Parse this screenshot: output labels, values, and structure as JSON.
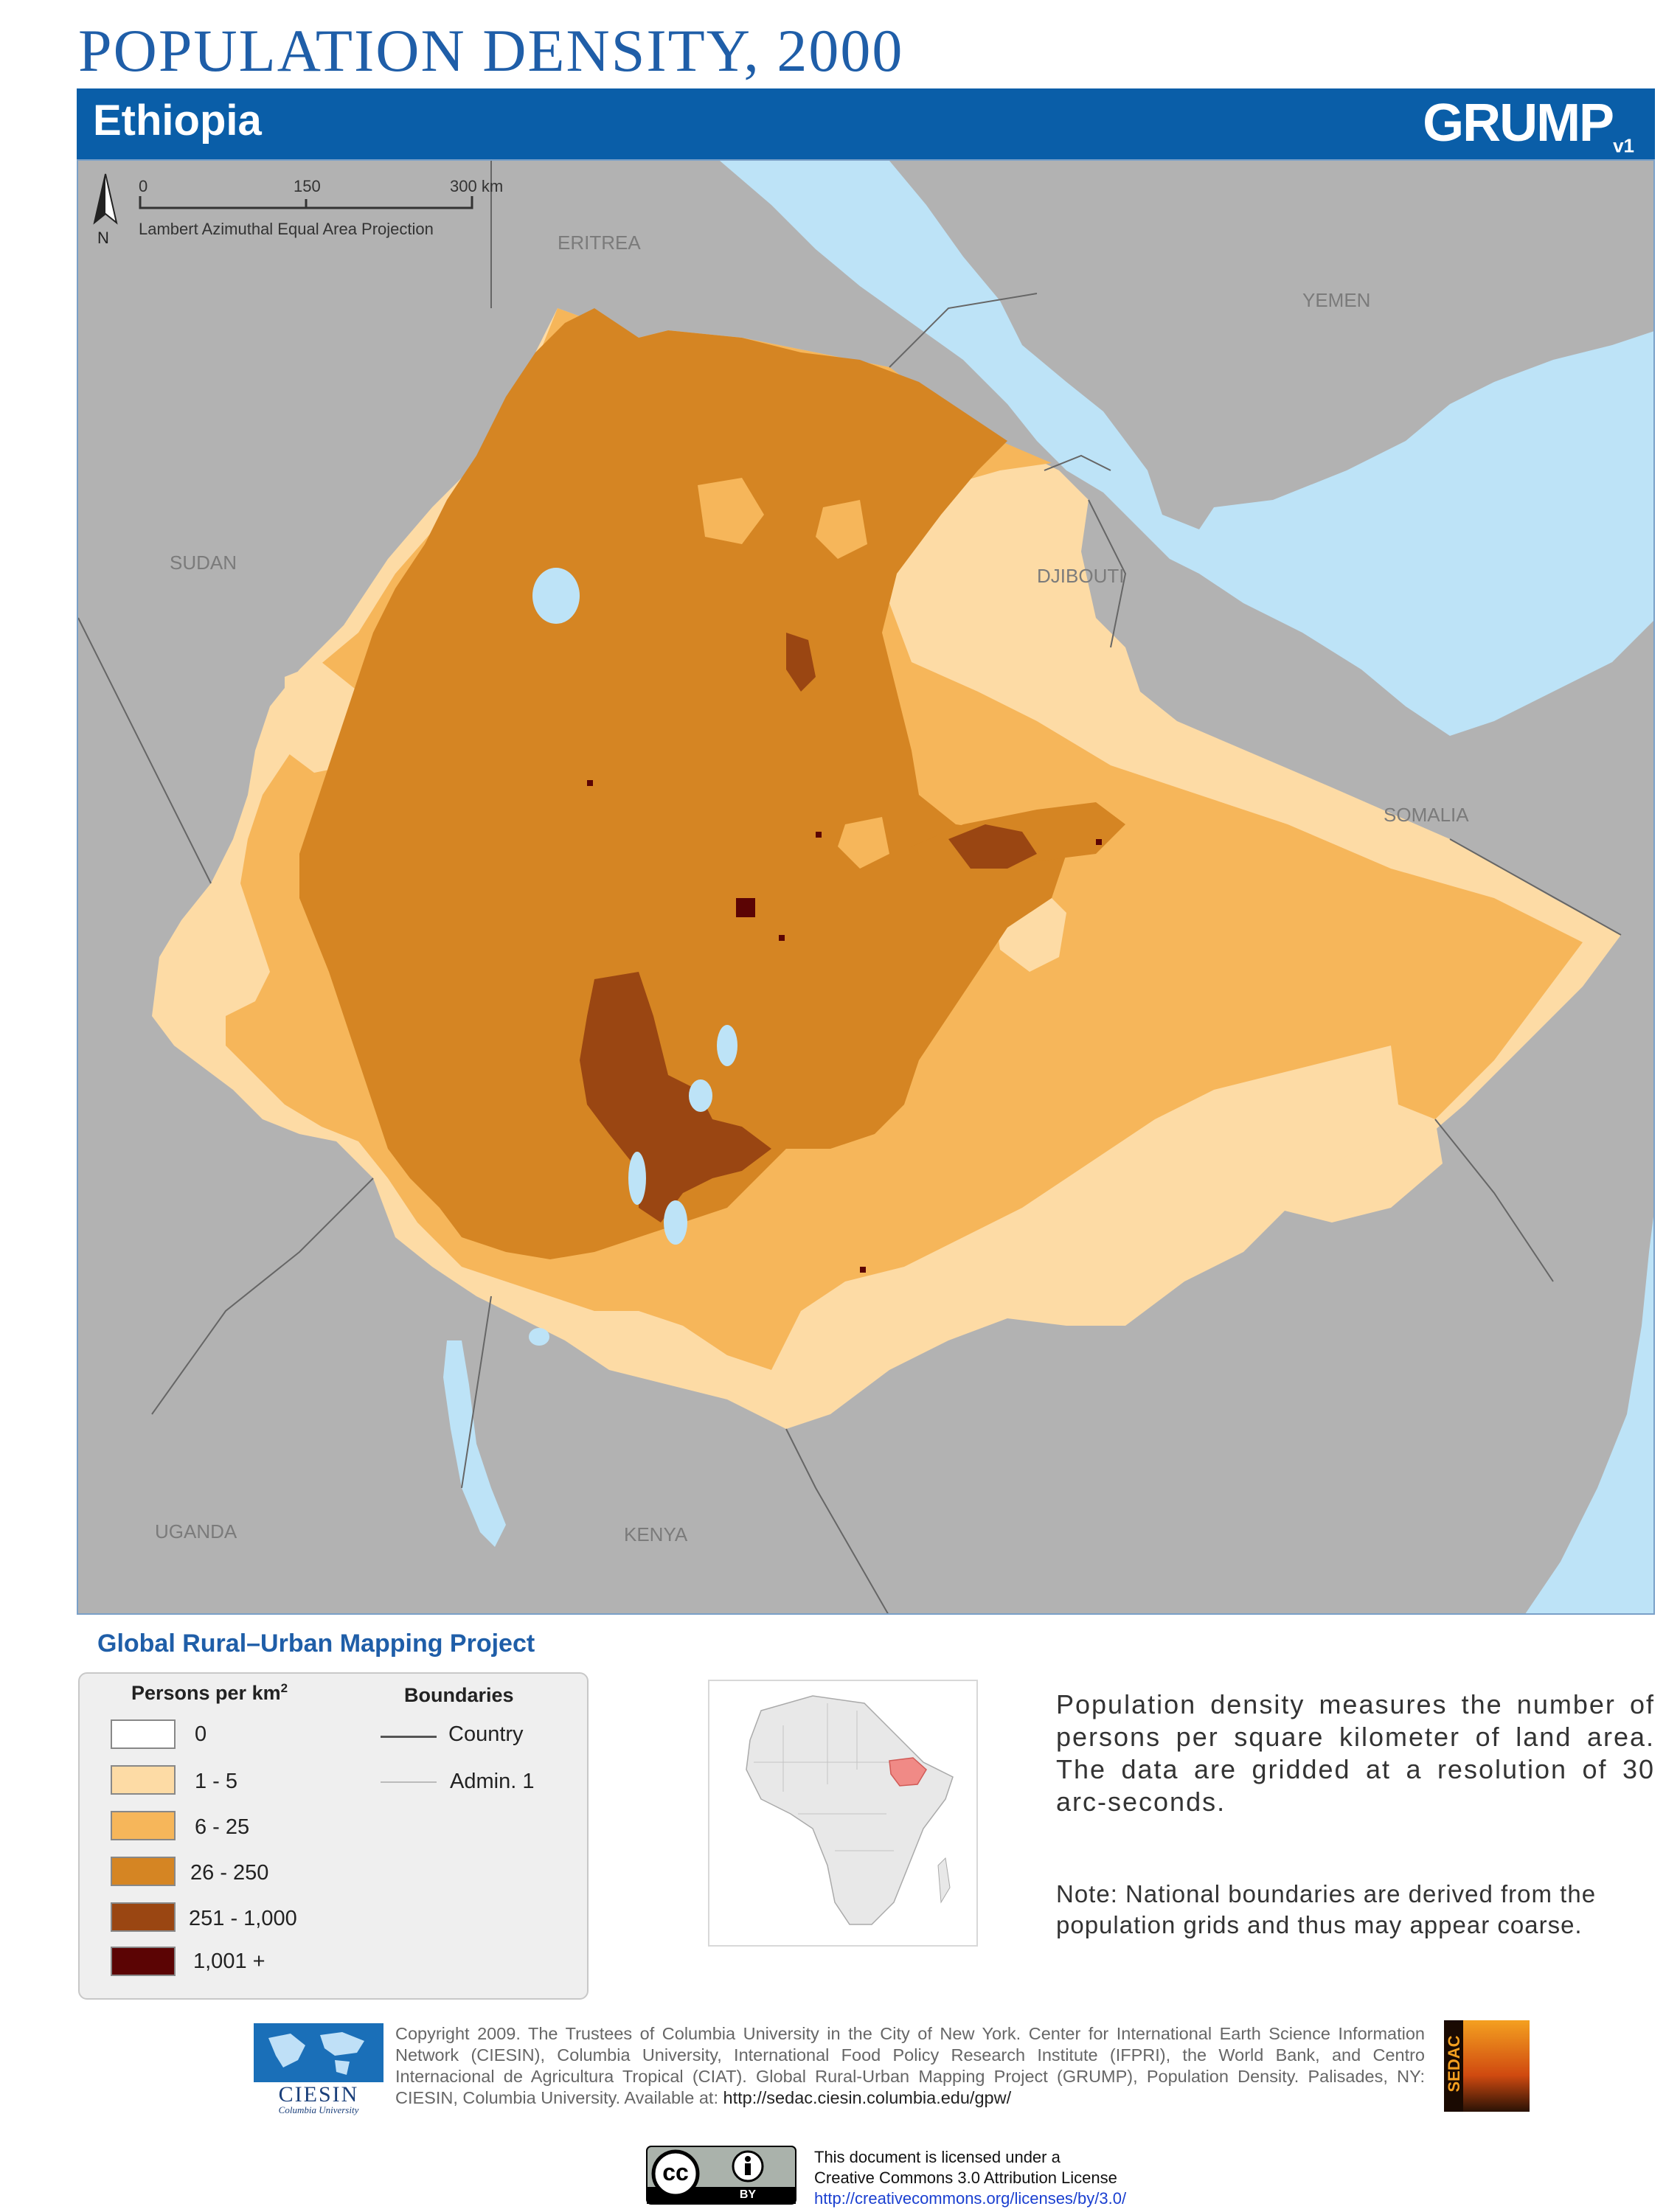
{
  "title": "POPULATION DENSITY, 2000",
  "country": "Ethiopia",
  "brand": {
    "name": "GRUMP",
    "version": "v1"
  },
  "map": {
    "scale_ticks": [
      "0",
      "150",
      "300 km"
    ],
    "north_label": "N",
    "projection": "Lambert Azimuthal Equal Area Projection",
    "neighbors": [
      "ERITREA",
      "YEMEN",
      "SUDAN",
      "DJIBOUTI",
      "SOMALIA",
      "UGANDA",
      "KENYA"
    ]
  },
  "project_title": "Global Rural–Urban Mapping Project",
  "legend": {
    "density_title": "Persons per km",
    "density_sup": "2",
    "classes": [
      {
        "label": "0",
        "color": "#ffffff"
      },
      {
        "label": "1 - 5",
        "color": "#fddba5"
      },
      {
        "label": "6 - 25",
        "color": "#f6b65a"
      },
      {
        "label": "26 - 250",
        "color": "#d58523"
      },
      {
        "label": "251 - 1,000",
        "color": "#9a4612"
      },
      {
        "label": "1,001 +",
        "color": "#5b0404"
      }
    ],
    "boundaries_title": "Boundaries",
    "boundaries": [
      {
        "label": "Country",
        "color": "#555555"
      },
      {
        "label": "Admin. 1",
        "color": "#bbbbbb"
      }
    ]
  },
  "colors": {
    "water": "#bde3f7",
    "neighbor_land": "#b2b2b2",
    "header_blue": "#0a5ea8",
    "highlight": "#f08a86"
  },
  "description": "Population density measures the number of persons per square kilometer of land area. The data are gridded at a resolution of 30 arc-seconds.",
  "note": "Note: National boundaries are derived from the population grids and thus may appear coarse.",
  "logos": {
    "ciesin": "CIESIN",
    "ciesin_sub": "Columbia University",
    "sedac": "SEDAC"
  },
  "copyright": "Copyright 2009. The Trustees of Columbia University in the City of New York. Center for International Earth Science Information Network (CIESIN), Columbia University, International Food Policy Research Institute (IFPRI), the World Bank, and Centro Internacional de Agricultura Tropical (CIAT). Global Rural-Urban Mapping Project (GRUMP), Population Density. Palisades, NY: CIESIN, Columbia University. Available at: ",
  "copyright_url": "http://sedac.ciesin.columbia.edu/gpw/",
  "license": {
    "line1": "This document is licensed under a",
    "line2": "Creative Commons 3.0 Attribution License",
    "url": "http://creativecommons.org/licenses/by/3.0/",
    "badge_cc": "cc",
    "badge_by": "BY"
  }
}
